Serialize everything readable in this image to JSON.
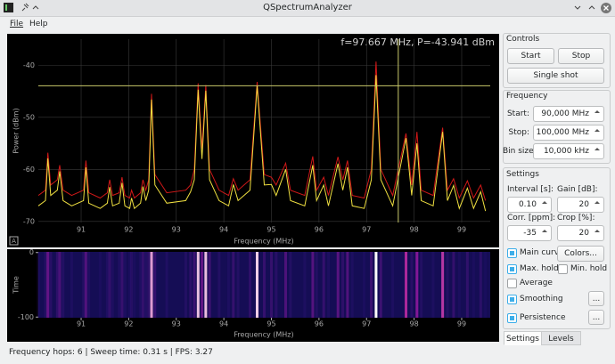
{
  "window": {
    "title": "QSpectrumAnalyzer"
  },
  "menu": [
    "File",
    "Help"
  ],
  "auto_range_button": "A",
  "chart_data": [
    {
      "type": "line",
      "annotation": "f=97.667 MHz, P=-43.941 dBm",
      "crosshair": [
        97.667,
        -43.941
      ],
      "xlabel": "Frequency (MHz)",
      "ylabel": "Power (dBm)",
      "xlim": [
        90.1,
        99.6
      ],
      "ylim": [
        -70.2,
        -35
      ],
      "xticks": [
        91,
        92,
        93,
        94,
        95,
        96,
        97,
        98,
        99
      ],
      "yticks": [
        -40,
        -50,
        -60,
        -70
      ],
      "grid": true,
      "x": [
        90.1,
        90.25,
        90.3,
        90.36,
        90.5,
        90.55,
        90.62,
        90.8,
        91.05,
        91.1,
        91.16,
        91.4,
        91.55,
        91.6,
        91.66,
        91.8,
        91.86,
        91.92,
        92.02,
        92.06,
        92.12,
        92.25,
        92.3,
        92.36,
        92.42,
        92.48,
        92.55,
        92.8,
        93.2,
        93.3,
        93.38,
        93.46,
        93.54,
        93.62,
        93.7,
        93.9,
        94.1,
        94.2,
        94.3,
        94.55,
        94.7,
        94.85,
        95.0,
        95.1,
        95.3,
        95.4,
        95.7,
        95.87,
        95.95,
        96.1,
        96.2,
        96.4,
        96.5,
        96.6,
        96.7,
        96.95,
        97.1,
        97.2,
        97.3,
        97.55,
        97.83,
        97.95,
        98.06,
        98.15,
        98.4,
        98.6,
        98.7,
        98.83,
        98.95,
        99.12,
        99.25,
        99.4,
        99.5
      ],
      "series": [
        {
          "color": "#d01818",
          "values": [
            -65,
            -64,
            -56.8,
            -63,
            -62,
            -59.2,
            -64,
            -65,
            -64,
            -58.3,
            -64.5,
            -65.5,
            -64.5,
            -62,
            -65,
            -64.5,
            -61.5,
            -65,
            -65.5,
            -64,
            -65.5,
            -64.5,
            -62,
            -64,
            -62,
            -45.5,
            -61,
            -64.5,
            -64,
            -63,
            -60,
            -43.5,
            -56,
            -43.8,
            -60,
            -64,
            -65,
            -61.8,
            -64,
            -62,
            -43.2,
            -61,
            -61.5,
            -63,
            -58.8,
            -64,
            -65,
            -57.5,
            -64,
            -61.5,
            -65,
            -57.6,
            -62,
            -58.3,
            -65,
            -65.5,
            -60,
            -39.3,
            -60,
            -65,
            -53.1,
            -63,
            -52.8,
            -64,
            -65,
            -52,
            -64,
            -61.8,
            -65.5,
            -62.2,
            -65.5,
            -63,
            -66
          ]
        },
        {
          "color": "#f0e040",
          "values": [
            -67,
            -66,
            -57.9,
            -65,
            -64,
            -60.4,
            -66,
            -67,
            -66,
            -59.6,
            -66.5,
            -67.5,
            -66.5,
            -63.4,
            -67,
            -66.5,
            -62.6,
            -67,
            -67.5,
            -65.5,
            -67.5,
            -66.5,
            -63.3,
            -66,
            -64,
            -46.6,
            -63,
            -66.5,
            -66,
            -64.3,
            -62,
            -44.7,
            -58,
            -44.9,
            -62,
            -66,
            -67,
            -62.9,
            -66,
            -64,
            -44,
            -63,
            -62.9,
            -65,
            -60,
            -66,
            -67,
            -59.2,
            -66,
            -63,
            -67,
            -58.9,
            -64,
            -59.6,
            -67,
            -67.5,
            -62,
            -41.9,
            -62,
            -67,
            -54,
            -65,
            -55,
            -66,
            -67,
            -52.8,
            -66,
            -63.1,
            -67.5,
            -63.6,
            -67.5,
            -64.3,
            -68
          ]
        }
      ]
    },
    {
      "type": "waterfall",
      "xlabel": "Frequency (MHz)",
      "ylabel": "Time",
      "xlim": [
        90.1,
        99.6
      ],
      "ylim": [
        -101,
        1
      ],
      "xticks": [
        91,
        92,
        93,
        94,
        95,
        96,
        97,
        98,
        99
      ],
      "yticks": [
        0,
        -100
      ]
    }
  ],
  "controls": {
    "title": "Controls",
    "start": "Start",
    "stop": "Stop",
    "single_shot": "Single shot"
  },
  "frequency": {
    "title": "Frequency",
    "rows": [
      [
        "Start:",
        "90,000 MHz"
      ],
      [
        "Stop:",
        "100,000 MHz"
      ],
      [
        "Bin size:",
        "10,000 kHz"
      ]
    ]
  },
  "settings": {
    "title": "Settings",
    "interval_label": "Interval [s]:",
    "interval": "0.10",
    "gain_label": "Gain [dB]:",
    "gain": "20",
    "corr_label": "Corr. [ppm]:",
    "corr": "-35",
    "crop_label": "Crop [%]:",
    "crop": "20",
    "checkboxes": [
      {
        "label": "Main curve",
        "checked": true
      },
      {
        "label": "Max. hold",
        "checked": true
      },
      {
        "label": "Min. hold",
        "checked": false
      },
      {
        "label": "Average",
        "checked": false
      },
      {
        "label": "Smoothing",
        "checked": true
      },
      {
        "label": "Persistence",
        "checked": true
      }
    ],
    "colors_button": "Colors...",
    "smoothing_button": "...",
    "persistence_button": "..."
  },
  "tabs": [
    "Settings",
    "Levels"
  ],
  "status_bar": "Frequency hops: 6 | Sweep time: 0.31 s | FPS: 3.27"
}
